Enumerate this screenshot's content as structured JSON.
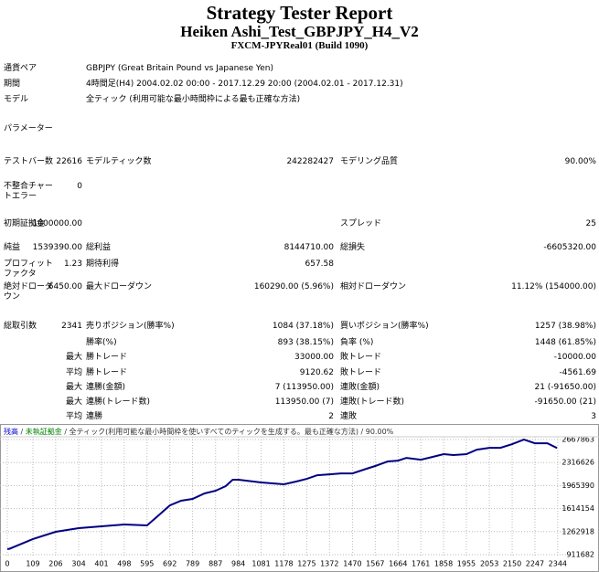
{
  "header": {
    "title": "Strategy Tester Report",
    "expert": "Heiken Ashi_Test_GBPJPY_H4_V2",
    "server": "FXCM-JPYReal01 (Build 1090)"
  },
  "info": {
    "rows": [
      {
        "label": "通貨ペア",
        "value": "GBPJPY (Great Britain Pound vs Japanese Yen)"
      },
      {
        "label": "期間",
        "value": "4時間足(H4) 2004.02.02 00:00 - 2017.12.29 20:00 (2004.02.01 - 2017.12.31)"
      },
      {
        "label": "モデル",
        "value": "全ティック (利用可能な最小時間枠による最も正確な方法)"
      },
      {
        "label": "パラメーター"
      }
    ]
  },
  "stats": {
    "rows": [
      [
        "テストバー数",
        "22616",
        "モデルティック数",
        "242282427",
        "モデリング品質",
        "90.00%"
      ],
      [
        "不整合チャートエラー",
        "0",
        null,
        null,
        null,
        null
      ],
      [
        "初期証拠金",
        "1000000.00",
        null,
        null,
        "スプレッド",
        "25"
      ],
      [
        "純益",
        "1539390.00",
        "総利益",
        "8144710.00",
        "総損失",
        "-6605320.00"
      ],
      [
        "プロフィットファクタ",
        "1.23",
        "期待利得",
        "657.58",
        null,
        null
      ],
      [
        "絶対ドローダウン",
        "6450.00",
        "最大ドローダウン",
        "160290.00 (5.96%)",
        "相対ドローダウン",
        "11.12% (154000.00)"
      ],
      [
        "総取引数",
        "2341",
        "売りポジション(勝率%)",
        "1084 (37.18%)",
        "買いポジション(勝率%)",
        "1257 (38.98%)"
      ],
      [
        null,
        null,
        "勝率(%)",
        "893 (38.15%)",
        "負率 (%)",
        "1448 (61.85%)"
      ],
      [
        null,
        "最大",
        "勝トレード",
        "33000.00",
        "敗トレード",
        "-10000.00"
      ],
      [
        null,
        "平均",
        "勝トレード",
        "9120.62",
        "敗トレード",
        "-4561.69"
      ],
      [
        null,
        "最大",
        "連勝(金額)",
        "7 (113950.00)",
        "連敗(金額)",
        "21 (-91650.00)"
      ],
      [
        null,
        "最大",
        "連勝(トレード数)",
        "113950.00 (7)",
        "連敗(トレード数)",
        "-91650.00 (21)"
      ],
      [
        null,
        "平均",
        "連勝",
        "2",
        "連敗",
        "3"
      ]
    ]
  },
  "chart": {
    "type": "line",
    "legend": [
      {
        "text": "残高",
        "color": "#0000cc"
      },
      {
        "text": "未執証拠金",
        "color": "#008000"
      },
      {
        "text": "全ティック(利用可能な最小時間枠を使いすべてのティックを生成する。最も正確な方法)",
        "color": "#333333"
      },
      {
        "text": "90.00%",
        "color": "#333333"
      }
    ],
    "legend_separator": "/",
    "xlim": [
      0,
      2403
    ],
    "ylim": [
      911682,
      2850000
    ],
    "xticks": [
      0,
      109,
      206,
      304,
      401,
      498,
      595,
      692,
      789,
      887,
      984,
      1081,
      1178,
      1275,
      1372,
      1470,
      1567,
      1664,
      1761,
      1858,
      1955,
      2053,
      2150,
      2247,
      2344
    ],
    "yticks": [
      911682,
      1262918,
      1614154,
      1965390,
      2316626,
      2667863
    ],
    "grid": true,
    "balance": {
      "color": "#000080",
      "x": [
        0,
        8,
        109,
        206,
        304,
        401,
        498,
        595,
        640,
        692,
        740,
        789,
        840,
        887,
        930,
        960,
        984,
        1081,
        1178,
        1230,
        1275,
        1320,
        1372,
        1420,
        1470,
        1530,
        1567,
        1620,
        1664,
        1700,
        1761,
        1810,
        1858,
        1900,
        1955,
        2000,
        2053,
        2100,
        2150,
        2200,
        2247,
        2300,
        2341
      ],
      "values": [
        1000000,
        1000000,
        1150000,
        1260000,
        1316000,
        1344000,
        1372000,
        1358000,
        1497000,
        1664000,
        1734000,
        1762000,
        1846000,
        1887000,
        1957000,
        2055000,
        2055000,
        2013000,
        1985000,
        2027000,
        2068000,
        2124000,
        2138000,
        2152000,
        2152000,
        2222000,
        2264000,
        2334000,
        2347000,
        2389000,
        2361000,
        2403000,
        2445000,
        2431000,
        2445000,
        2514000,
        2542000,
        2542000,
        2598000,
        2668000,
        2612000,
        2612000,
        2539390
      ]
    }
  }
}
